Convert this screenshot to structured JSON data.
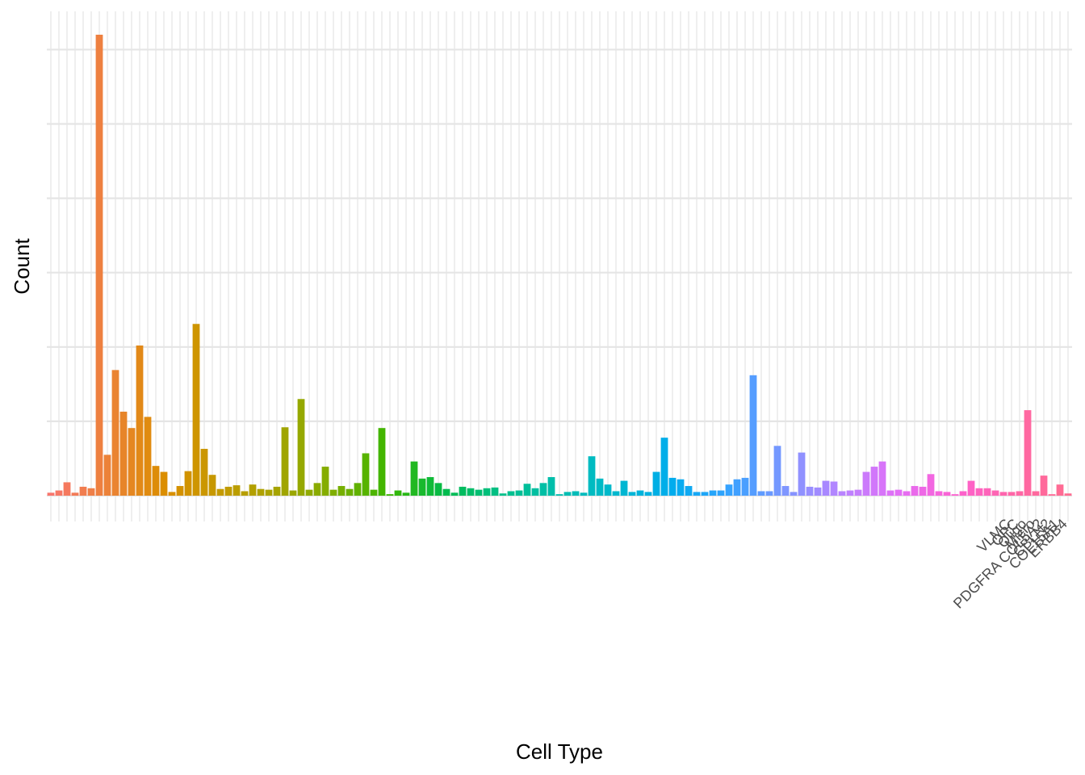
{
  "chart_data": {
    "type": "bar",
    "xlabel": "Cell Type",
    "ylabel": "Count",
    "grid": true,
    "legend": "none",
    "y_tick_labels_shown": false,
    "ylim": [
      0,
      6200
    ],
    "y_gridlines": [
      0,
      1000,
      2000,
      3000,
      4000,
      5000,
      6000
    ],
    "x_tick_labels_legible": false,
    "x_tick_labels_visible_fragments": [
      "ERBB4",
      "COL15A1",
      "CBLN2",
      "PDGFRA COL5A2",
      "Micro",
      "Oligo",
      "OPC",
      "VLMC"
    ],
    "categories_count": 127,
    "values": [
      40,
      70,
      180,
      40,
      120,
      100,
      6200,
      550,
      1690,
      1130,
      910,
      2020,
      1060,
      400,
      320,
      50,
      130,
      330,
      2310,
      630,
      280,
      90,
      120,
      140,
      60,
      150,
      90,
      80,
      120,
      920,
      70,
      1300,
      80,
      170,
      390,
      80,
      130,
      90,
      170,
      570,
      80,
      910,
      20,
      70,
      40,
      460,
      230,
      250,
      170,
      90,
      40,
      120,
      100,
      80,
      100,
      110,
      30,
      60,
      70,
      160,
      100,
      170,
      250,
      20,
      50,
      60,
      40,
      530,
      230,
      150,
      60,
      200,
      50,
      70,
      50,
      320,
      780,
      240,
      220,
      130,
      50,
      50,
      70,
      70,
      150,
      220,
      240,
      1620,
      60,
      60,
      670,
      130,
      50,
      580,
      120,
      110,
      200,
      190,
      60,
      70,
      80,
      320,
      390,
      460,
      70,
      80,
      60,
      130,
      120,
      290,
      60,
      50,
      20,
      60,
      200,
      100,
      100,
      70,
      50,
      50,
      60,
      1150,
      60,
      270,
      20,
      150,
      30
    ],
    "colors": [
      "#F8766D",
      "#EC8239",
      "#DB8E00",
      "#C49A00",
      "#A6A400",
      "#7FAE00",
      "#39B600",
      "#00BB4E",
      "#00C08B",
      "#00BEAF",
      "#00B8CE",
      "#00ACED",
      "#35A2FF",
      "#7F96FF",
      "#B983FF",
      "#E36EF6",
      "#FD61D1",
      "#FF66A8",
      "#FF6C91"
    ]
  }
}
